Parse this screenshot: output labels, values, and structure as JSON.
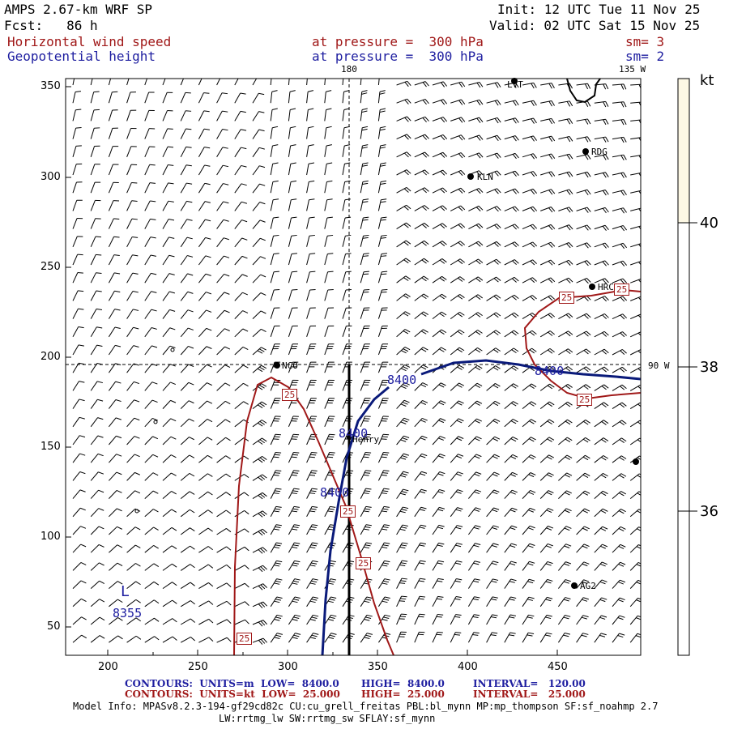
{
  "header": {
    "model": "AMPS 2.67-km WRF SP",
    "fcst": "Fcst:   86 h",
    "init": "Init: 12 UTC Tue 11 Nov 25",
    "valid": "Valid: 02 UTC Sat 15 Nov 25",
    "field1": "Horizontal wind speed",
    "field1_level": "at pressure =  300 hPa",
    "field1_sm": "sm= 3",
    "field2": "Geopotential height",
    "field2_level": "at pressure =  300 hPa",
    "field2_sm": "sm= 2"
  },
  "map": {
    "lon_top_180": "180",
    "lon_top_135w": "135 W",
    "lon_right_90w": "90 W",
    "x_ticks": [
      "200",
      "250",
      "300",
      "350",
      "400",
      "450"
    ],
    "y_ticks": [
      "350",
      "300",
      "250",
      "200",
      "150",
      "100",
      "50"
    ],
    "stations": [
      {
        "name": "LVT"
      },
      {
        "name": "RDG"
      },
      {
        "name": "KLN"
      },
      {
        "name": "HRC"
      },
      {
        "name": "NCO"
      },
      {
        "name": "Henry"
      },
      {
        "name": "AG2"
      },
      {
        "name": ""
      }
    ],
    "height_labels": [
      "8400",
      "8400",
      "8400",
      "8400",
      "8355"
    ],
    "low_label": "L",
    "speed_labels": [
      "25",
      "25",
      "25",
      "25",
      "25",
      "25",
      "25"
    ]
  },
  "colorbar": {
    "unit": "kt",
    "labels": [
      "40",
      "38",
      "36"
    ],
    "colors": {
      "top": "#fdf8e4",
      "bottom": "#ffffff"
    }
  },
  "footer": {
    "line1_a": "CONTOURS:  UNITS=m  LOW=  8400.0",
    "line1_b": "HIGH=  8400.0",
    "line1_c": "INTERVAL=   120.00",
    "line2_a": "CONTOURS:  UNITS=kt  LOW=  25.000",
    "line2_b": "HIGH=  25.000",
    "line2_c": "INTERVAL=   25.000",
    "info1": "Model Info: MPASv8.2.3-194-gf29cd82c CU:cu_grell_freitas PBL:bl_mynn MP:mp_thompson SF:sf_noahmp 2.7",
    "info2": "LW:rrtmg_lw SW:rrtmg_sw SFLAY:sf_mynn"
  },
  "colors": {
    "wind_contour": "#a01818",
    "height_contour": "#0a1a7a",
    "barb": "#000000"
  }
}
